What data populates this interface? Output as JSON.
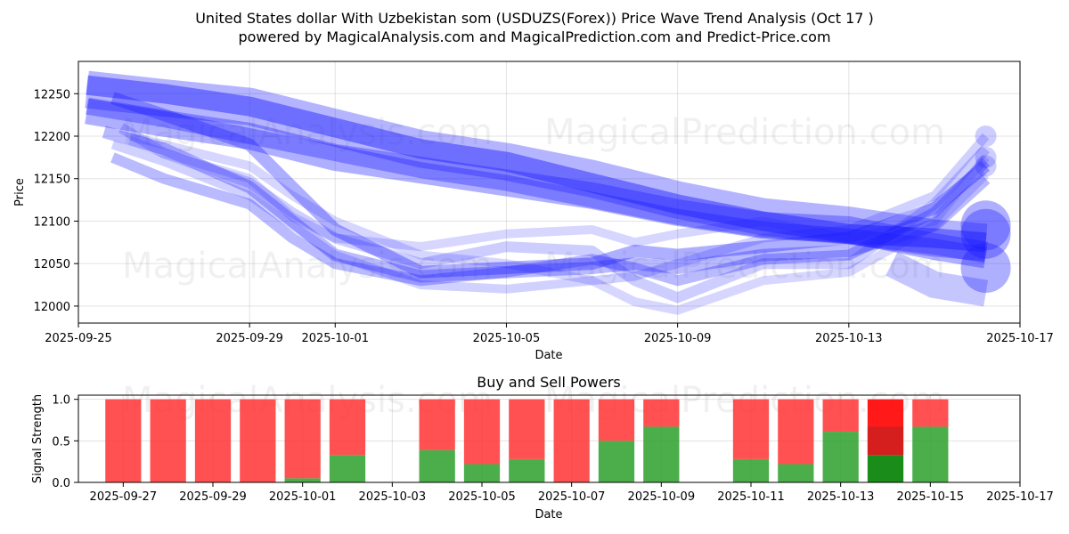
{
  "title_line1": "United States dollar With Uzbekistan som (USDUZS(Forex)) Price Wave Trend Analysis (Oct 17 )",
  "title_line2": "powered by MagicalAnalysis.com and MagicalPrediction.com and Predict-Price.com",
  "watermarks": [
    "MagicalAnalysis.com",
    "MagicalPrediction.com"
  ],
  "colors": {
    "wave": "#1a1aff",
    "buy": "#2ca02c",
    "sell": "#ff3333",
    "buy_strong": "#008000",
    "sell_strong": "#ff0000"
  },
  "chart_data": [
    {
      "type": "line",
      "title": "",
      "xlabel": "Date",
      "ylabel": "Price",
      "ylim": [
        11980,
        12288
      ],
      "xlim": [
        "2025-09-25",
        "2025-10-17"
      ],
      "x_ticks": [
        "2025-09-25",
        "2025-09-29",
        "2025-10-01",
        "2025-10-05",
        "2025-10-09",
        "2025-10-13",
        "2025-10-17"
      ],
      "y_ticks": [
        12000,
        12050,
        12100,
        12150,
        12200,
        12250
      ],
      "grid": true,
      "bands": [
        {
          "name": "upper wide band",
          "x": [
            0.2,
            2,
            4,
            6,
            8,
            10,
            12,
            14,
            16,
            18,
            20,
            21.2
          ],
          "y": [
            12255,
            12245,
            12235,
            12210,
            12185,
            12170,
            12150,
            12125,
            12105,
            12095,
            12080,
            12075
          ],
          "width": 42,
          "opacity": 0.32
        },
        {
          "name": "upper core wave",
          "x": [
            0.2,
            2,
            4,
            6,
            8,
            10,
            12,
            14,
            16,
            18,
            20,
            21.2
          ],
          "y": [
            12260,
            12250,
            12235,
            12210,
            12185,
            12170,
            12145,
            12120,
            12100,
            12085,
            12080,
            12075
          ],
          "width": 22,
          "opacity": 0.45
        },
        {
          "name": "mid wide band",
          "x": [
            0.2,
            2,
            4,
            6,
            8,
            10,
            12,
            14,
            16,
            18,
            20,
            21.2
          ],
          "y": [
            12230,
            12215,
            12200,
            12175,
            12160,
            12145,
            12130,
            12110,
            12095,
            12090,
            12070,
            12060
          ],
          "width": 30,
          "opacity": 0.35
        },
        {
          "name": "mid core wave",
          "x": [
            0.2,
            2,
            4,
            6,
            8,
            10,
            12,
            14,
            16,
            18,
            20,
            21.2
          ],
          "y": [
            12235,
            12220,
            12200,
            12180,
            12160,
            12145,
            12125,
            12105,
            12090,
            12082,
            12070,
            12060
          ],
          "width": 18,
          "opacity": 0.35
        },
        {
          "name": "lower wave 1",
          "x": [
            0.8,
            2,
            4,
            5,
            6,
            8,
            10,
            12,
            13,
            14,
            16,
            18,
            20,
            21.2
          ],
          "y": [
            12245,
            12225,
            12190,
            12140,
            12090,
            12040,
            12045,
            12050,
            12065,
            12060,
            12070,
            12080,
            12115,
            12165
          ],
          "width": 14,
          "opacity": 0.35
        },
        {
          "name": "lower wave 2",
          "x": [
            0.6,
            2,
            4,
            5,
            6,
            8,
            10,
            12,
            13,
            14,
            16,
            18,
            20,
            21.2
          ],
          "y": [
            12205,
            12185,
            12140,
            12100,
            12060,
            12035,
            12040,
            12045,
            12050,
            12045,
            12060,
            12065,
            12095,
            12150
          ],
          "width": 14,
          "opacity": 0.3
        },
        {
          "name": "lower wave 3",
          "x": [
            0.8,
            2,
            4,
            5,
            6,
            8,
            10,
            12,
            13,
            14,
            16,
            18,
            20,
            21.2
          ],
          "y": [
            12175,
            12150,
            12120,
            12080,
            12050,
            12030,
            12040,
            12055,
            12045,
            12030,
            12055,
            12060,
            12110,
            12170
          ],
          "width": 12,
          "opacity": 0.3
        },
        {
          "name": "lower wave 4",
          "x": [
            1,
            2,
            4,
            5,
            6,
            8,
            10,
            12,
            13,
            14,
            16,
            18,
            20,
            21.2
          ],
          "y": [
            12210,
            12180,
            12145,
            12110,
            12080,
            12050,
            12070,
            12065,
            12030,
            12010,
            12050,
            12050,
            12120,
            12185
          ],
          "width": 12,
          "opacity": 0.22
        },
        {
          "name": "lower wave 5",
          "x": [
            0.8,
            2,
            4,
            5,
            6,
            8,
            10,
            12,
            13,
            14,
            16,
            18,
            20,
            21.2
          ],
          "y": [
            12190,
            12170,
            12130,
            12095,
            12060,
            12025,
            12020,
            12030,
            12035,
            12050,
            12080,
            12090,
            12130,
            12200
          ],
          "width": 10,
          "opacity": 0.2
        },
        {
          "name": "outer wave 6",
          "x": [
            1.2,
            2,
            4,
            5,
            6,
            8,
            10,
            12,
            13,
            14,
            16,
            18,
            20,
            21.2
          ],
          "y": [
            12200,
            12190,
            12165,
            12130,
            12100,
            12060,
            12050,
            12030,
            12005,
            11995,
            12030,
            12040,
            12095,
            12155
          ],
          "width": 10,
          "opacity": 0.18
        },
        {
          "name": "outer wave 7",
          "x": [
            1.2,
            2,
            4,
            5,
            6,
            8,
            10,
            12,
            13,
            14,
            16,
            18,
            20,
            21.2
          ],
          "y": [
            12195,
            12180,
            12150,
            12105,
            12080,
            12070,
            12085,
            12090,
            12075,
            12085,
            12100,
            12080,
            12100,
            12175
          ],
          "width": 10,
          "opacity": 0.18
        },
        {
          "name": "lower envelope",
          "x": [
            19,
            20,
            21.2
          ],
          "y": [
            12050,
            12025,
            12015
          ],
          "width": 30,
          "opacity": 0.25
        }
      ],
      "end_markers": [
        {
          "x": 21.2,
          "y": 12095,
          "opacity": 0.35
        },
        {
          "x": 21.2,
          "y": 12085,
          "opacity": 0.35
        },
        {
          "x": 21.2,
          "y": 12045,
          "opacity": 0.35
        },
        {
          "x": 21.2,
          "y": 12200,
          "opacity": 0.22
        },
        {
          "x": 21.2,
          "y": 12175,
          "opacity": 0.22
        },
        {
          "x": 21.2,
          "y": 12165,
          "opacity": 0.22
        }
      ]
    },
    {
      "type": "bar",
      "title": "Buy and Sell Powers",
      "xlabel": "Date",
      "ylabel": "Signal Strength",
      "ylim": [
        0,
        1.05
      ],
      "xlim": [
        "2025-09-26",
        "2025-10-17"
      ],
      "x_ticks": [
        "2025-09-27",
        "2025-09-29",
        "2025-10-01",
        "2025-10-03",
        "2025-10-05",
        "2025-10-07",
        "2025-10-09",
        "2025-10-11",
        "2025-10-13",
        "2025-10-15",
        "2025-10-17"
      ],
      "y_ticks": [
        0.0,
        0.5,
        1.0
      ],
      "categories": [
        "2025-09-27",
        "2025-09-28",
        "2025-09-29",
        "2025-09-30",
        "2025-10-01",
        "2025-10-02",
        "2025-10-04",
        "2025-10-05",
        "2025-10-06",
        "2025-10-07",
        "2025-10-08",
        "2025-10-09",
        "2025-10-11",
        "2025-10-12",
        "2025-10-13",
        "2025-10-14",
        "2025-10-15"
      ],
      "series": [
        {
          "name": "Buy",
          "values": [
            0,
            0,
            0,
            0,
            0.05,
            0.33,
            0.39,
            0.22,
            0.28,
            0,
            0.5,
            0.67,
            0.28,
            0.22,
            0.61,
            0.33,
            0.67
          ]
        },
        {
          "name": "Sell",
          "values": [
            1,
            1,
            1,
            1,
            0.95,
            0.67,
            0.61,
            0.78,
            0.72,
            1,
            0.5,
            0.33,
            0.72,
            0.78,
            0.39,
            0.67,
            0.33
          ]
        }
      ],
      "highlight": "2025-10-14"
    }
  ]
}
